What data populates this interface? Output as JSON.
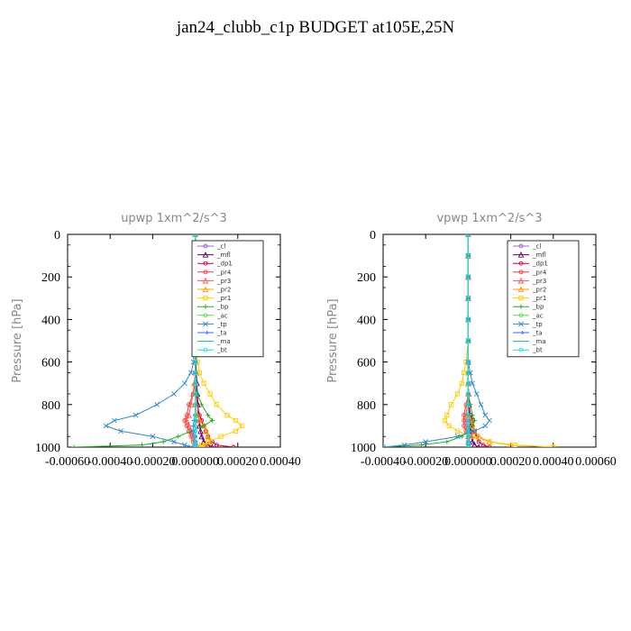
{
  "page": {
    "title": "jan24_clubb_c1p  BUDGET at105E,25N"
  },
  "chart_data": [
    {
      "type": "line",
      "title": "upwp   1xm^2/s^3",
      "ylabel": "Pressure [hPa]",
      "xlim": [
        -0.0006,
        0.0004
      ],
      "ylim": [
        1000,
        0
      ],
      "xticks": [
        "-0.00060",
        "-0.00040",
        "-0.00020",
        "0.000000",
        "0.00020",
        "0.00040"
      ],
      "xtick_values": [
        -0.0006,
        -0.0004,
        -0.0002,
        0,
        0.0002,
        0.0004
      ],
      "yticks": [
        0,
        200,
        400,
        600,
        800,
        1000
      ],
      "legend_position": "top-right",
      "pressure": [
        0,
        100,
        200,
        300,
        400,
        500,
        600,
        650,
        700,
        750,
        800,
        850,
        875,
        900,
        925,
        950,
        975,
        990,
        1000
      ],
      "series": [
        {
          "name": "_cl",
          "color": "#9966cc",
          "marker": "circle",
          "values": [
            0,
            0,
            0,
            0,
            0,
            0,
            0,
            0,
            0,
            0,
            0,
            0,
            0,
            0,
            0,
            0,
            0,
            0,
            0
          ]
        },
        {
          "name": "_mfl",
          "color": "#660066",
          "marker": "triangle",
          "values": [
            0,
            0,
            0,
            0,
            0,
            0,
            3e-06,
            5e-06,
            8e-06,
            1e-05,
            1.2e-05,
            1.5e-05,
            1.8e-05,
            2e-05,
            2.5e-05,
            3e-05,
            4e-05,
            6e-05,
            8e-05
          ]
        },
        {
          "name": "_dp1",
          "color": "#cc0044",
          "marker": "circle",
          "values": [
            0,
            0,
            0,
            0,
            0,
            0,
            0,
            0,
            0,
            5e-06,
            1e-05,
            2e-05,
            3e-05,
            4e-05,
            5e-05,
            6e-05,
            8e-05,
            0.0001,
            0.00018
          ]
        },
        {
          "name": "_pr4",
          "color": "#ff3333",
          "marker": "circle",
          "values": [
            0,
            0,
            0,
            0,
            0,
            0,
            0,
            0,
            0,
            -1e-05,
            -3e-05,
            -4e-05,
            -5e-05,
            -4e-05,
            -3e-05,
            -2e-05,
            -1e-05,
            0,
            0
          ]
        },
        {
          "name": "_pr3",
          "color": "#ff5555",
          "marker": "triangle",
          "values": [
            0,
            0,
            0,
            0,
            0,
            0,
            0,
            0,
            -5e-06,
            -1e-05,
            -2e-05,
            -3e-05,
            -4e-05,
            -3e-05,
            -2e-05,
            -1e-05,
            0,
            0,
            0
          ]
        },
        {
          "name": "_pr2",
          "color": "#ff9900",
          "marker": "triangle",
          "values": [
            0,
            0,
            0,
            0,
            0,
            0,
            0,
            0,
            0,
            0,
            0,
            1e-05,
            2e-05,
            4e-05,
            5e-05,
            6e-05,
            7e-05,
            5e-05,
            2e-05
          ]
        },
        {
          "name": "_pr1",
          "color": "#ffcc00",
          "marker": "square",
          "values": [
            0,
            0,
            0,
            0,
            0,
            0,
            1e-05,
            2e-05,
            4e-05,
            7e-05,
            0.0001,
            0.00015,
            0.00019,
            0.00022,
            0.00019,
            0.00012,
            6e-05,
            3e-05,
            2e-05
          ]
        },
        {
          "name": "_bp",
          "color": "#22aa22",
          "marker": "plus",
          "values": [
            0,
            0,
            0,
            0,
            0,
            0,
            0,
            0,
            0,
            1e-05,
            3e-05,
            6e-05,
            8e-05,
            4e-05,
            -2e-05,
            -8e-05,
            -0.00015,
            -0.00025,
            -0.00057
          ]
        },
        {
          "name": "_ac",
          "color": "#55dd55",
          "marker": "circle",
          "values": [
            0,
            0,
            0,
            0,
            0,
            0,
            0,
            0,
            0,
            0,
            0,
            0,
            0,
            0,
            0,
            0,
            0,
            0,
            0
          ]
        },
        {
          "name": "_tp",
          "color": "#3388cc",
          "marker": "cross",
          "values": [
            0,
            0,
            0,
            0,
            0,
            -3e-06,
            -8e-06,
            -2e-05,
            -5e-05,
            -0.0001,
            -0.00018,
            -0.00028,
            -0.00038,
            -0.00042,
            -0.00035,
            -0.0002,
            -0.0001,
            -5e-05,
            -2e-05
          ]
        },
        {
          "name": "_ta",
          "color": "#3366ff",
          "marker": "arrow",
          "values": [
            0,
            0,
            0,
            0,
            0,
            0,
            0,
            0,
            0,
            0,
            0,
            0,
            -5e-06,
            -1e-05,
            -1e-05,
            -5e-06,
            0,
            0,
            0
          ]
        },
        {
          "name": "_ma",
          "color": "#22aaaa",
          "marker": "none",
          "values": [
            0,
            0,
            0,
            0,
            0,
            0,
            0,
            0,
            0,
            0,
            0,
            0,
            0,
            0,
            0,
            0,
            0,
            0,
            0
          ]
        },
        {
          "name": "_bt",
          "color": "#22dddd",
          "marker": "circle",
          "values": [
            0,
            0,
            0,
            0,
            0,
            0,
            0,
            0,
            0,
            0,
            0,
            0,
            0,
            0,
            0,
            0,
            0,
            0,
            0
          ]
        }
      ]
    },
    {
      "type": "line",
      "title": "vpwp   1xm^2/s^3",
      "ylabel": "Pressure [hPa]",
      "xlim": [
        -0.0004,
        0.0006
      ],
      "ylim": [
        1000,
        0
      ],
      "xticks": [
        "-0.00040",
        "-0.00020",
        "0.000000",
        "0.00020",
        "0.00040",
        "0.00060"
      ],
      "xtick_values": [
        -0.0004,
        -0.0002,
        0,
        0.0002,
        0.0004,
        0.0006
      ],
      "yticks": [
        0,
        200,
        400,
        600,
        800,
        1000
      ],
      "legend_position": "top-right",
      "pressure": [
        0,
        100,
        200,
        300,
        400,
        500,
        600,
        650,
        700,
        750,
        800,
        850,
        875,
        900,
        925,
        950,
        975,
        990,
        1000
      ],
      "series": [
        {
          "name": "_cl",
          "color": "#9966cc",
          "marker": "circle",
          "values": [
            0,
            0,
            0,
            0,
            0,
            0,
            0,
            0,
            0,
            0,
            0,
            0,
            0,
            0,
            0,
            0,
            0,
            0,
            0
          ]
        },
        {
          "name": "_mfl",
          "color": "#660066",
          "marker": "triangle",
          "values": [
            0,
            0,
            0,
            0,
            0,
            0,
            0,
            0,
            0,
            2e-06,
            4e-06,
            6e-06,
            8e-06,
            1e-05,
            1.2e-05,
            1.5e-05,
            2e-05,
            3e-05,
            5e-05
          ]
        },
        {
          "name": "_dp1",
          "color": "#cc0044",
          "marker": "circle",
          "values": [
            0,
            0,
            0,
            0,
            0,
            0,
            0,
            0,
            0,
            0,
            5e-06,
            1e-05,
            2e-05,
            2e-05,
            3e-05,
            4e-05,
            5e-05,
            7e-05,
            0.0001
          ]
        },
        {
          "name": "_pr4",
          "color": "#ff3333",
          "marker": "circle",
          "values": [
            0,
            0,
            0,
            0,
            0,
            0,
            0,
            0,
            0,
            0,
            -1e-05,
            -2e-05,
            -2e-05,
            -2e-05,
            -1e-05,
            0,
            0,
            0,
            0
          ]
        },
        {
          "name": "_pr3",
          "color": "#ff5555",
          "marker": "triangle",
          "values": [
            0,
            0,
            0,
            0,
            0,
            0,
            0,
            0,
            0,
            0,
            -5e-06,
            -1e-05,
            -1e-05,
            -1e-05,
            -5e-06,
            0,
            0,
            0,
            0
          ]
        },
        {
          "name": "_pr2",
          "color": "#ff9900",
          "marker": "triangle",
          "values": [
            0,
            0,
            0,
            0,
            0,
            0,
            0,
            0,
            0,
            0,
            0,
            0,
            1e-05,
            2e-05,
            3e-05,
            5e-05,
            0.0001,
            0.0002,
            0.0004
          ]
        },
        {
          "name": "_pr1",
          "color": "#ffcc00",
          "marker": "square",
          "values": [
            0,
            0,
            0,
            0,
            0,
            0,
            -1e-05,
            -2e-05,
            -3e-05,
            -5e-05,
            -8e-05,
            -0.0001,
            -0.00011,
            -9e-05,
            -5e-05,
            2e-05,
            0.0001,
            0.00022,
            0.0004
          ]
        },
        {
          "name": "_bp",
          "color": "#22aa22",
          "marker": "plus",
          "values": [
            0,
            0,
            0,
            0,
            0,
            0,
            0,
            0,
            0,
            0,
            1e-05,
            2e-05,
            3e-05,
            2e-05,
            0,
            -3e-05,
            -0.0001,
            -0.00022,
            -0.0004
          ]
        },
        {
          "name": "_ac",
          "color": "#55dd55",
          "marker": "circle",
          "values": [
            0,
            0,
            0,
            0,
            0,
            0,
            0,
            0,
            0,
            0,
            0,
            0,
            0,
            0,
            0,
            0,
            0,
            0,
            0
          ]
        },
        {
          "name": "_tp",
          "color": "#3388cc",
          "marker": "cross",
          "values": [
            0,
            0,
            0,
            0,
            0,
            0,
            0,
            1e-05,
            2e-05,
            4e-05,
            6e-05,
            8e-05,
            0.0001,
            8e-05,
            3e-05,
            -5e-05,
            -0.0002,
            -0.0003,
            -0.0004
          ]
        },
        {
          "name": "_ta",
          "color": "#3366ff",
          "marker": "arrow",
          "values": [
            0,
            0,
            0,
            0,
            0,
            0,
            0,
            0,
            0,
            0,
            0,
            0,
            0,
            0,
            0,
            0,
            0,
            0,
            0
          ]
        },
        {
          "name": "_ma",
          "color": "#22aaaa",
          "marker": "none",
          "values": [
            0,
            0,
            0,
            0,
            0,
            0,
            0,
            0,
            0,
            0,
            0,
            0,
            0,
            0,
            0,
            0,
            0,
            0,
            0
          ]
        },
        {
          "name": "_bt",
          "color": "#22dddd",
          "marker": "circle",
          "values": [
            0,
            0,
            0,
            0,
            0,
            0,
            0,
            0,
            0,
            0,
            0,
            0,
            0,
            0,
            0,
            0,
            0,
            0,
            0
          ]
        }
      ]
    }
  ]
}
